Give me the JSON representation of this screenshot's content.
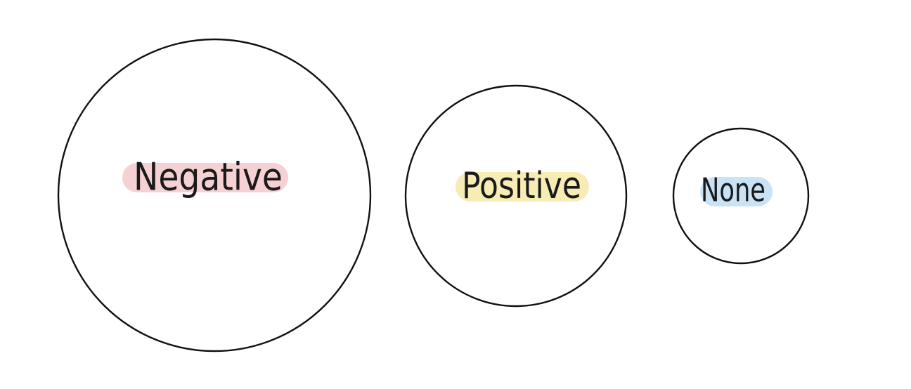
{
  "diagram": {
    "nodes": [
      {
        "id": "negative",
        "label": "Negative",
        "highlight": "#f6d1d4"
      },
      {
        "id": "positive",
        "label": "Positive",
        "highlight": "#f8ecb5"
      },
      {
        "id": "none",
        "label": "None",
        "highlight": "#c9e2f5"
      }
    ],
    "colors": {
      "outline": "#111111",
      "text": "#1a1a1a",
      "background": "#ffffff"
    }
  }
}
